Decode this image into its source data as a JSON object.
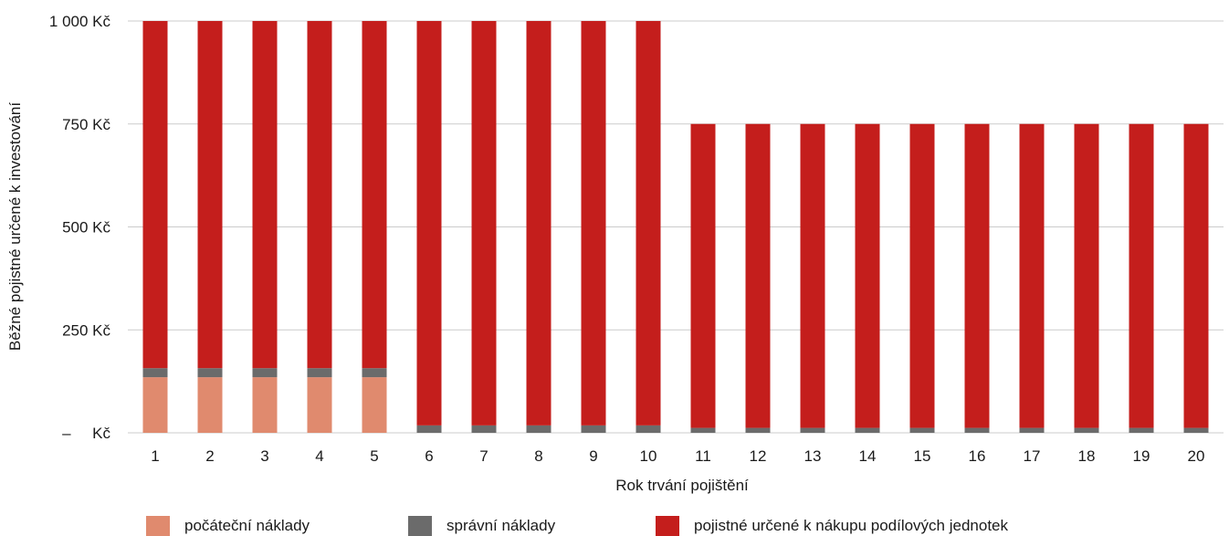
{
  "colors": {
    "initial": "#e08a6e",
    "admin": "#6b6b6b",
    "invest": "#c41e1c",
    "grid": "#cccccc"
  },
  "chart_data": {
    "type": "bar",
    "stacked": true,
    "xlabel": "Rok trvání pojištění",
    "ylabel": "Běžné pojistné určené k investování",
    "categories": [
      "1",
      "2",
      "3",
      "4",
      "5",
      "6",
      "7",
      "8",
      "9",
      "10",
      "11",
      "12",
      "13",
      "14",
      "15",
      "16",
      "17",
      "18",
      "19",
      "20"
    ],
    "ylim": [
      0,
      1000
    ],
    "yticks": [
      0,
      250,
      500,
      750,
      1000
    ],
    "ytick_labels": [
      "–     Kč",
      "250 Kč",
      "500 Kč",
      "750 Kč",
      "1 000 Kč"
    ],
    "grid": true,
    "legend_position": "bottom",
    "series": [
      {
        "name": "počáteční náklady",
        "color_key": "initial",
        "values": [
          135,
          135,
          135,
          135,
          135,
          0,
          0,
          0,
          0,
          0,
          0,
          0,
          0,
          0,
          0,
          0,
          0,
          0,
          0,
          0
        ]
      },
      {
        "name": "správní náklady",
        "color_key": "admin",
        "values": [
          22,
          22,
          22,
          22,
          22,
          18,
          18,
          18,
          18,
          18,
          12,
          12,
          12,
          12,
          12,
          12,
          12,
          12,
          12,
          12
        ]
      },
      {
        "name": "pojistné určené k nákupu podílových jednotek",
        "color_key": "invest",
        "values": [
          843,
          843,
          843,
          843,
          843,
          982,
          982,
          982,
          982,
          982,
          738,
          738,
          738,
          738,
          738,
          738,
          738,
          738,
          738,
          738
        ]
      }
    ]
  }
}
